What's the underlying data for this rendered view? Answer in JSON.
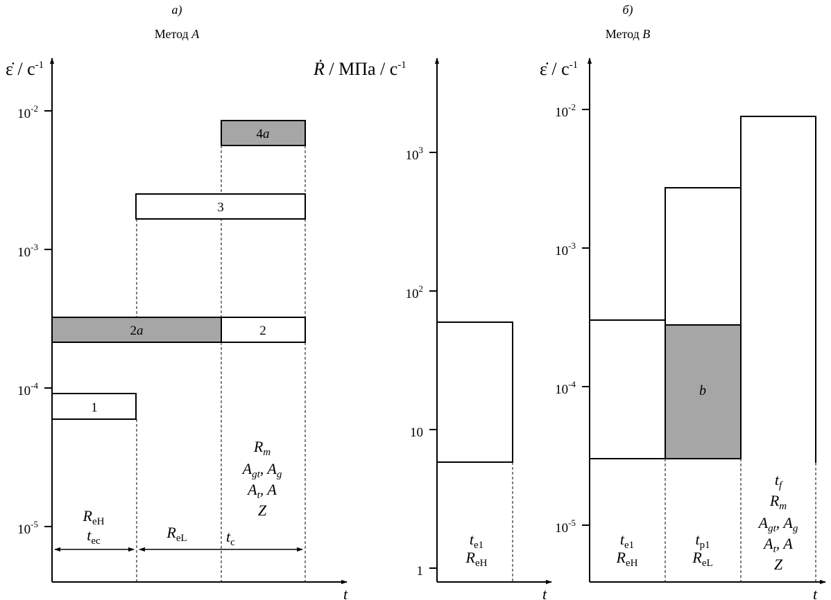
{
  "colors": {
    "fill_shaded": "#a6a6a6",
    "fill_white": "#ffffff",
    "stroke": "#000000"
  },
  "panel_a": {
    "label": "а)",
    "title_prefix": "Метод ",
    "title_var": "A",
    "yaxis_sym": "ε̇",
    "yaxis_unit": " / с",
    "yaxis_exp": "-1",
    "xaxis": "t",
    "ticks": [
      {
        "base": "10",
        "exp": "-2"
      },
      {
        "base": "10",
        "exp": "-3"
      },
      {
        "base": "10",
        "exp": "-4"
      },
      {
        "base": "10",
        "exp": "-5"
      }
    ],
    "boxes": {
      "b1": "1",
      "b2a_num": "2",
      "b2a_let": "a",
      "b2": "2",
      "b3": "3",
      "b4a_num": "4",
      "b4a_let": "a"
    },
    "notes": {
      "reh_main": "R",
      "reh_sub": "eH",
      "tec_main": "t",
      "tec_sub": "ec",
      "rel_main": "R",
      "rel_sub": "eL",
      "tc_main": "t",
      "tc_sub": "c",
      "rm": "R",
      "rm_sub": "m",
      "agt": "A",
      "agt_sub": "gt",
      "ag_sep": ", ",
      "ag": "A",
      "ag_sub": "g",
      "at": "A",
      "at_sub": "t",
      "a_sep": ", ",
      "a": "A",
      "z": "Z"
    }
  },
  "panel_mid": {
    "yaxis_sym": "Ṙ",
    "yaxis_unit": " / МПа / с",
    "yaxis_exp": "-1",
    "xaxis": "t",
    "ticks": [
      {
        "base": "10",
        "exp": "3"
      },
      {
        "base": "10",
        "exp": "2"
      },
      {
        "base": "10",
        "exp": ""
      },
      {
        "base": "1",
        "exp": ""
      }
    ],
    "notes": {
      "te1_main": "t",
      "te1_sub": "e1",
      "reh_main": "R",
      "reh_sub": "eH"
    }
  },
  "panel_b": {
    "label": "б)",
    "title_prefix": "Метод ",
    "title_var": "B",
    "yaxis_sym": "ε̇",
    "yaxis_unit": " / с",
    "yaxis_exp": "-1",
    "xaxis": "t",
    "ticks": [
      {
        "base": "10",
        "exp": "-2"
      },
      {
        "base": "10",
        "exp": "-3"
      },
      {
        "base": "10",
        "exp": "-4"
      },
      {
        "base": "10",
        "exp": "-5"
      }
    ],
    "box_b": "b",
    "notes": {
      "te1_main": "t",
      "te1_sub": "e1",
      "reh_main": "R",
      "reh_sub": "eH",
      "tp1_main": "t",
      "tp1_sub": "p1",
      "rel_main": "R",
      "rel_sub": "eL",
      "tf_main": "t",
      "tf_sub": "f",
      "rm": "R",
      "rm_sub": "m",
      "agt": "A",
      "agt_sub": "gt",
      "ag_sep": ", ",
      "ag": "A",
      "ag_sub": "g",
      "at": "A",
      "at_sub": "t",
      "a_sep": ", ",
      "a": "A",
      "z": "Z"
    }
  }
}
